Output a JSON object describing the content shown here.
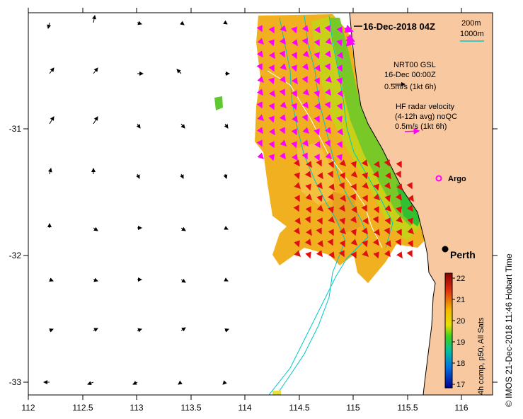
{
  "title": "16-Dec-2018 04Z",
  "depth_legend": {
    "d1": "200m",
    "d2": "1000m"
  },
  "model_legend": {
    "line1": "NRT00 GSL",
    "line2": "16-Dec 00:00Z",
    "line3": "0.5m/s (1kt 6h)"
  },
  "radar_legend": {
    "line1": "HF radar velocity",
    "line2": "(4-12h avg) noQC",
    "line3": "0.5m/s (1kt 6h)"
  },
  "labels": {
    "argo": "Argo",
    "city": "Perth"
  },
  "x_ticks": [
    "112",
    "112.5",
    "113",
    "113.5",
    "114",
    "114.5",
    "115",
    "115.5",
    "116"
  ],
  "y_ticks": [
    "-31",
    "-32",
    "-33"
  ],
  "colorbar": {
    "ticks": [
      "22",
      "21",
      "20",
      "19",
      "18",
      "17"
    ],
    "label": "4h comp, p50, All Sats"
  },
  "side_text": "© IMOS 21-Dec-2018 11:46 Hobart Time",
  "colors": {
    "land": "#f8c8a0",
    "contour200": "#00c8c8",
    "contour1000": "#00c8c8",
    "model_arrow": "#000000",
    "radar_arrow": "#ff00ff"
  }
}
